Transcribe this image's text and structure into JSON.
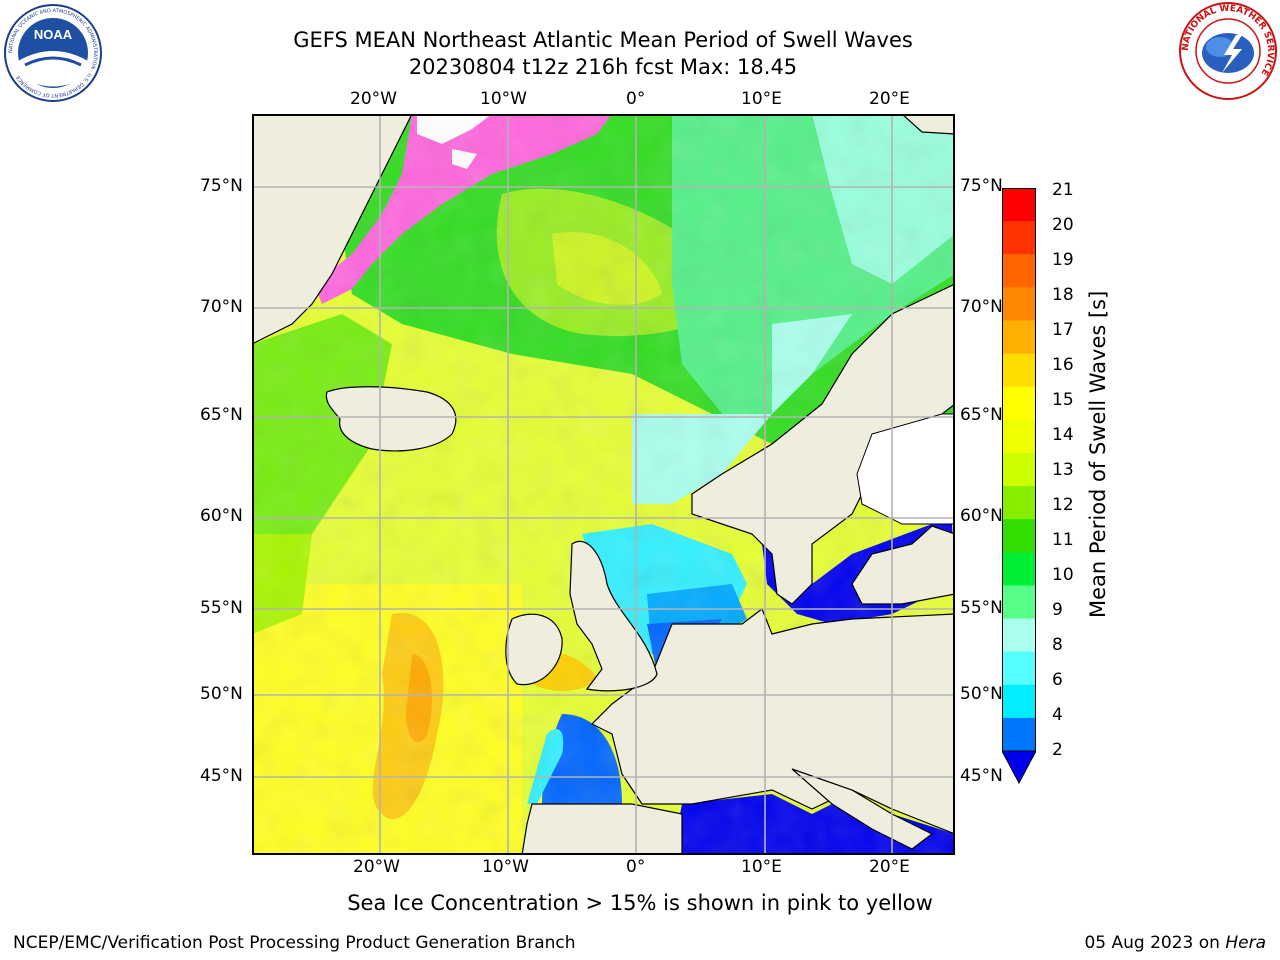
{
  "title": {
    "line1": "GEFS MEAN Northeast Atlantic Mean Period of Swell Waves",
    "line2": "20230804 t12z 216h fcst   Max: 18.45"
  },
  "logos": {
    "noaa": {
      "text": "NOAA",
      "ring_text": "NATIONAL OCEANIC AND ATMOSPHERIC ADMINISTRATION · U.S. DEPARTMENT OF COMMERCE"
    },
    "nws": {
      "ring_text": "NATIONAL WEATHER SERVICE"
    }
  },
  "map": {
    "lon_ticks_top": [
      "20°W",
      "10°W",
      "0°",
      "10°E",
      "20°E"
    ],
    "lon_ticks_bottom": [
      "20°W",
      "10°W",
      "0°",
      "10°E",
      "20°E"
    ],
    "lat_ticks_left": [
      "75°N",
      "70°N",
      "65°N",
      "60°N",
      "55°N",
      "50°N",
      "45°N"
    ],
    "lat_ticks_right": [
      "75°N",
      "70°N",
      "65°N",
      "60°N",
      "55°N",
      "50°N",
      "45°N"
    ],
    "colors": {
      "land": "#efedde",
      "grid": "#b3b3b3",
      "ice_pink": "#ff66dd",
      "ice_white": "#ffffff"
    }
  },
  "colorbar": {
    "label": "Mean Period of Swell Waves [s]",
    "ticks": [
      "21",
      "20",
      "19",
      "18",
      "17",
      "16",
      "15",
      "14",
      "13",
      "12",
      "11",
      "10",
      "9",
      "8",
      "6",
      "4",
      "2"
    ],
    "colors_top_to_bottom": [
      "#ff0000",
      "#ff3300",
      "#ff6600",
      "#ff8800",
      "#ffb000",
      "#ffdd00",
      "#ffff00",
      "#eeff00",
      "#ccff00",
      "#88ee00",
      "#33dd00",
      "#00ee33",
      "#55ff88",
      "#aaffee",
      "#55ffff",
      "#00eeff",
      "#0077ff",
      "#0000ee"
    ],
    "extend_color": "#0000ee"
  },
  "caption": "Sea Ice Concentration > 15% is shown in pink to yellow",
  "footer": {
    "left": "NCEP/EMC/Verification Post Processing Product Generation Branch",
    "right_prefix": "05 Aug 2023 on ",
    "right_machine": "Hera"
  }
}
